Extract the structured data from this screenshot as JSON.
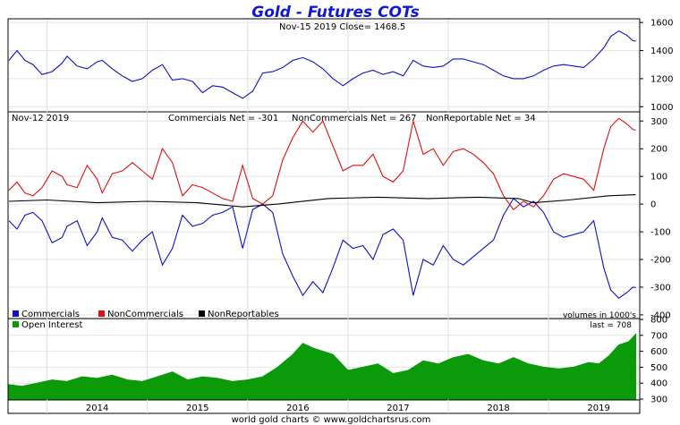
{
  "chart_data": {
    "title": "Gold - Futures COTs",
    "footer": "world gold charts © www.goldchartsrus.com",
    "x_axis": {
      "type": "time",
      "start": 2013.62,
      "end": 2019.9,
      "labels": [
        "2014",
        "2015",
        "2016",
        "2017",
        "2018",
        "2019"
      ]
    },
    "panels": [
      {
        "type": "line",
        "header": "Nov-15  2019   Close= 1468.5",
        "ylim": [
          970,
          1620
        ],
        "yticks": [
          "1600",
          "1400",
          "1200",
          "1000"
        ],
        "series": [
          {
            "color": "#1010c8",
            "x": [
              2013.62,
              2013.7,
              2013.78,
              2013.86,
              2013.95,
              2014.05,
              2014.15,
              2014.2,
              2014.3,
              2014.4,
              2014.5,
              2014.55,
              2014.65,
              2014.75,
              2014.85,
              2014.95,
              2015.05,
              2015.15,
              2015.25,
              2015.35,
              2015.45,
              2015.55,
              2015.65,
              2015.75,
              2015.85,
              2015.95,
              2016.05,
              2016.15,
              2016.25,
              2016.35,
              2016.45,
              2016.55,
              2016.65,
              2016.75,
              2016.85,
              2016.95,
              2017.05,
              2017.15,
              2017.25,
              2017.35,
              2017.45,
              2017.55,
              2017.65,
              2017.75,
              2017.85,
              2017.95,
              2018.05,
              2018.15,
              2018.25,
              2018.35,
              2018.45,
              2018.55,
              2018.65,
              2018.75,
              2018.85,
              2018.95,
              2019.05,
              2019.15,
              2019.25,
              2019.35,
              2019.45,
              2019.55,
              2019.62,
              2019.7,
              2019.78,
              2019.84,
              2019.87
            ],
            "y": [
              1330,
              1400,
              1330,
              1300,
              1230,
              1250,
              1310,
              1360,
              1290,
              1270,
              1320,
              1330,
              1270,
              1220,
              1180,
              1200,
              1260,
              1300,
              1190,
              1200,
              1180,
              1100,
              1150,
              1140,
              1100,
              1060,
              1110,
              1240,
              1250,
              1280,
              1330,
              1350,
              1320,
              1270,
              1200,
              1150,
              1200,
              1240,
              1260,
              1230,
              1250,
              1220,
              1330,
              1290,
              1280,
              1290,
              1340,
              1340,
              1320,
              1300,
              1260,
              1220,
              1200,
              1200,
              1220,
              1260,
              1290,
              1300,
              1290,
              1280,
              1340,
              1420,
              1500,
              1540,
              1510,
              1470,
              1468.5
            ]
          }
        ]
      },
      {
        "type": "line",
        "header_date": "Nov-12  2019",
        "header_stats": [
          "Commercials Net = -301",
          "NonCommercials Net = 267",
          "NonReportable Net = 34"
        ],
        "ylim": [
          -410,
          330
        ],
        "yticks": [
          "300",
          "200",
          "100",
          "0",
          "-100",
          "-200",
          "-300",
          "-400"
        ],
        "legend": [
          "Commercials",
          "NonCommercials",
          "NonReportables"
        ],
        "legend_colors": [
          "#1010c8",
          "#e01010",
          "#000000"
        ],
        "note": "volumes in 1000's",
        "series": [
          {
            "name": "Commercials",
            "color": "#1010c8",
            "x": [
              2013.62,
              2013.7,
              2013.78,
              2013.86,
              2013.95,
              2014.05,
              2014.15,
              2014.2,
              2014.3,
              2014.4,
              2014.5,
              2014.55,
              2014.65,
              2014.75,
              2014.85,
              2014.95,
              2015.05,
              2015.15,
              2015.25,
              2015.35,
              2015.45,
              2015.55,
              2015.65,
              2015.75,
              2015.85,
              2015.95,
              2016.05,
              2016.15,
              2016.25,
              2016.35,
              2016.45,
              2016.55,
              2016.65,
              2016.75,
              2016.85,
              2016.95,
              2017.05,
              2017.15,
              2017.25,
              2017.35,
              2017.45,
              2017.55,
              2017.65,
              2017.75,
              2017.85,
              2017.95,
              2018.05,
              2018.15,
              2018.25,
              2018.35,
              2018.45,
              2018.55,
              2018.65,
              2018.75,
              2018.85,
              2018.95,
              2019.05,
              2019.15,
              2019.25,
              2019.35,
              2019.45,
              2019.55,
              2019.62,
              2019.7,
              2019.78,
              2019.84,
              2019.87
            ],
            "y": [
              -60,
              -90,
              -40,
              -30,
              -60,
              -140,
              -120,
              -80,
              -60,
              -150,
              -100,
              -50,
              -120,
              -130,
              -170,
              -130,
              -100,
              -220,
              -160,
              -40,
              -80,
              -70,
              -40,
              -30,
              -10,
              -160,
              -20,
              0,
              -30,
              -180,
              -260,
              -330,
              -280,
              -320,
              -230,
              -130,
              -160,
              -150,
              -200,
              -110,
              -90,
              -130,
              -330,
              -200,
              -220,
              -150,
              -200,
              -220,
              -190,
              -160,
              -130,
              -40,
              20,
              -10,
              10,
              -30,
              -100,
              -120,
              -110,
              -100,
              -60,
              -230,
              -310,
              -340,
              -320,
              -300,
              -301
            ]
          },
          {
            "name": "NonCommercials",
            "color": "#e01010",
            "x": [
              2013.62,
              2013.7,
              2013.78,
              2013.86,
              2013.95,
              2014.05,
              2014.15,
              2014.2,
              2014.3,
              2014.4,
              2014.5,
              2014.55,
              2014.65,
              2014.75,
              2014.85,
              2014.95,
              2015.05,
              2015.15,
              2015.25,
              2015.35,
              2015.45,
              2015.55,
              2015.65,
              2015.75,
              2015.85,
              2015.95,
              2016.05,
              2016.15,
              2016.25,
              2016.35,
              2016.45,
              2016.55,
              2016.65,
              2016.75,
              2016.85,
              2016.95,
              2017.05,
              2017.15,
              2017.25,
              2017.35,
              2017.45,
              2017.55,
              2017.65,
              2017.75,
              2017.85,
              2017.95,
              2018.05,
              2018.15,
              2018.25,
              2018.35,
              2018.45,
              2018.55,
              2018.65,
              2018.75,
              2018.85,
              2018.95,
              2019.05,
              2019.15,
              2019.25,
              2019.35,
              2019.45,
              2019.55,
              2019.62,
              2019.7,
              2019.78,
              2019.84,
              2019.87
            ],
            "y": [
              50,
              80,
              40,
              30,
              60,
              120,
              100,
              70,
              60,
              140,
              90,
              40,
              110,
              120,
              150,
              120,
              90,
              200,
              150,
              30,
              70,
              60,
              40,
              20,
              10,
              140,
              20,
              0,
              30,
              160,
              240,
              300,
              260,
              300,
              210,
              120,
              140,
              140,
              180,
              100,
              80,
              120,
              300,
              180,
              200,
              140,
              190,
              200,
              180,
              150,
              110,
              30,
              -20,
              10,
              -10,
              30,
              90,
              110,
              100,
              90,
              50,
              200,
              280,
              310,
              290,
              270,
              267
            ]
          },
          {
            "name": "NonReportables",
            "color": "#000000",
            "x": [
              2013.62,
              2014.0,
              2014.5,
              2015.0,
              2015.5,
              2015.95,
              2016.3,
              2016.8,
              2017.3,
              2017.8,
              2018.3,
              2018.7,
              2018.85,
              2019.2,
              2019.6,
              2019.87
            ],
            "y": [
              10,
              15,
              5,
              10,
              5,
              -10,
              0,
              20,
              25,
              20,
              25,
              20,
              5,
              15,
              30,
              34
            ]
          }
        ]
      },
      {
        "type": "area",
        "header": "Open Interest",
        "last_label": "last = 708",
        "ylim": [
          300,
          800
        ],
        "yticks": [
          "800",
          "700",
          "600",
          "500",
          "400",
          "300"
        ],
        "series": [
          {
            "name": "Open Interest",
            "color": "#0a9a0a",
            "x": [
              2013.62,
              2013.75,
              2013.9,
              2014.05,
              2014.2,
              2014.35,
              2014.5,
              2014.65,
              2014.8,
              2014.95,
              2015.1,
              2015.25,
              2015.4,
              2015.55,
              2015.7,
              2015.85,
              2016.0,
              2016.15,
              2016.3,
              2016.45,
              2016.55,
              2016.65,
              2016.75,
              2016.85,
              2017.0,
              2017.15,
              2017.3,
              2017.45,
              2017.6,
              2017.75,
              2017.9,
              2018.05,
              2018.2,
              2018.35,
              2018.5,
              2018.65,
              2018.8,
              2018.95,
              2019.1,
              2019.25,
              2019.4,
              2019.5,
              2019.6,
              2019.7,
              2019.8,
              2019.87
            ],
            "y": [
              390,
              380,
              400,
              420,
              410,
              440,
              430,
              450,
              420,
              410,
              440,
              470,
              420,
              440,
              430,
              410,
              420,
              440,
              500,
              580,
              650,
              620,
              600,
              580,
              480,
              500,
              520,
              460,
              480,
              540,
              520,
              560,
              580,
              540,
              520,
              560,
              520,
              500,
              490,
              500,
              530,
              520,
              570,
              640,
              660,
              708
            ]
          }
        ]
      }
    ]
  }
}
